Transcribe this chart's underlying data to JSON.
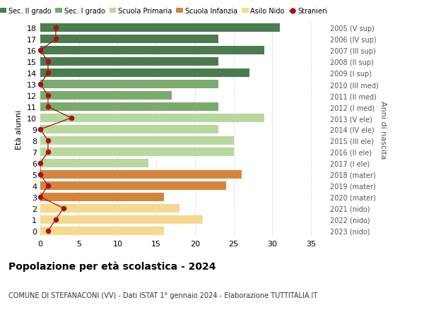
{
  "ages": [
    18,
    17,
    16,
    15,
    14,
    13,
    12,
    11,
    10,
    9,
    8,
    7,
    6,
    5,
    4,
    3,
    2,
    1,
    0
  ],
  "years": [
    "2005 (V sup)",
    "2006 (IV sup)",
    "2007 (III sup)",
    "2008 (II sup)",
    "2009 (I sup)",
    "2010 (III med)",
    "2011 (II med)",
    "2012 (I med)",
    "2013 (V ele)",
    "2014 (IV ele)",
    "2015 (III ele)",
    "2016 (II ele)",
    "2017 (I ele)",
    "2018 (mater)",
    "2019 (mater)",
    "2020 (mater)",
    "2021 (nido)",
    "2022 (nido)",
    "2023 (nido)"
  ],
  "bar_values": [
    31,
    23,
    29,
    23,
    27,
    23,
    17,
    23,
    29,
    23,
    25,
    25,
    14,
    26,
    24,
    16,
    18,
    21,
    16
  ],
  "bar_colors": [
    "#4a7c4e",
    "#4a7c4e",
    "#4a7c4e",
    "#4a7c4e",
    "#4a7c4e",
    "#7aaa6e",
    "#7aaa6e",
    "#7aaa6e",
    "#b8d8a0",
    "#b8d8a0",
    "#b8d8a0",
    "#b8d8a0",
    "#b8d8a0",
    "#d4843c",
    "#d4843c",
    "#d4843c",
    "#f5d98e",
    "#f5d98e",
    "#f5d98e"
  ],
  "stranieri": [
    2,
    2,
    0,
    1,
    1,
    0,
    1,
    1,
    4,
    0,
    1,
    1,
    0,
    0,
    1,
    0,
    3,
    2,
    1
  ],
  "legend_labels": [
    "Sec. II grado",
    "Sec. I grado",
    "Scuola Primaria",
    "Scuola Infanzia",
    "Asilo Nido",
    "Stranieri"
  ],
  "legend_colors": [
    "#4a7c4e",
    "#7aaa6e",
    "#b8d8a0",
    "#d4843c",
    "#f5d98e",
    "#cc2222"
  ],
  "title": "Popolazione per età scolastica - 2024",
  "subtitle": "COMUNE DI STEFANACONI (VV) - Dati ISTAT 1° gennaio 2024 - Elaborazione TUTTITALIA.IT",
  "ylabel": "Età alunni",
  "right_label": "Anni di nascita",
  "xlim": [
    0,
    37
  ],
  "xticks": [
    0,
    5,
    10,
    15,
    20,
    25,
    30,
    35
  ],
  "background_color": "#ffffff",
  "grid_color": "#cccccc",
  "bar_height": 0.75,
  "stranieri_color": "#aa1111"
}
